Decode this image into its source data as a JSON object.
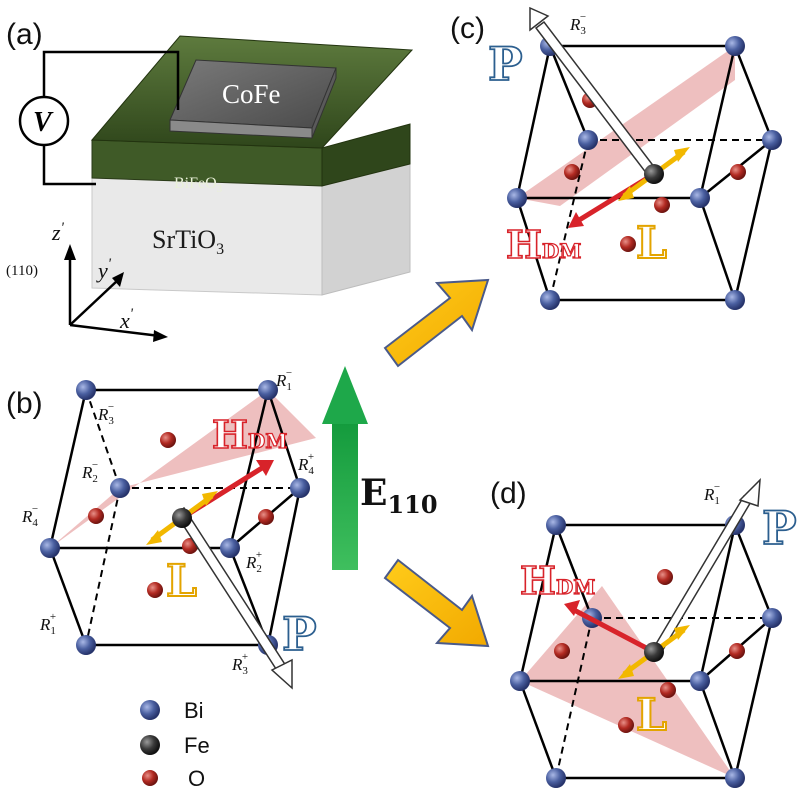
{
  "panels": {
    "a": "(a)",
    "b": "(b)",
    "c": "(c)",
    "d": "(d)"
  },
  "device": {
    "voltage_symbol": "V",
    "top_layer": "CoFe",
    "film_layer": "BiFeO",
    "film_layer_sub": "3",
    "substrate": "SrTiO",
    "substrate_sub": "3",
    "plane": "(110)",
    "axes": {
      "z": "z",
      "y": "y",
      "x": "x",
      "prime": "'"
    }
  },
  "sites": {
    "R": "R",
    "b": [
      {
        "sub": "1",
        "sup": "−"
      },
      {
        "sub": "3",
        "sup": "−"
      },
      {
        "sub": "2",
        "sup": "−"
      },
      {
        "sub": "4",
        "sup": "+"
      },
      {
        "sub": "4",
        "sup": "−"
      },
      {
        "sub": "2",
        "sup": "+"
      },
      {
        "sub": "1",
        "sup": "+"
      },
      {
        "sub": "3",
        "sup": "+"
      }
    ],
    "c": {
      "sub": "3",
      "sup": "−"
    },
    "d": {
      "sub": "1",
      "sup": "−"
    }
  },
  "vectors": {
    "hdm_main": "H",
    "hdm_sub": "DM",
    "polarization": "P",
    "antiferro": "L"
  },
  "field": {
    "symbol": "E",
    "sub": "110",
    "arrow_color": "#1ea84a"
  },
  "legend": [
    {
      "label": "Bi",
      "color": "#4a5fa0"
    },
    {
      "label": "Fe",
      "color": "#3a3a3a"
    },
    {
      "label": "O",
      "color": "#b22a22"
    }
  ],
  "colors": {
    "hdm": "#d8232a",
    "polarization": "#2c5f8f",
    "l_vector": "#f2b800",
    "transition_arrow": "#f5b300",
    "plane_fill": "#e8a9a9",
    "film": "#3f5a27",
    "substrate": "#e6e6e6"
  }
}
